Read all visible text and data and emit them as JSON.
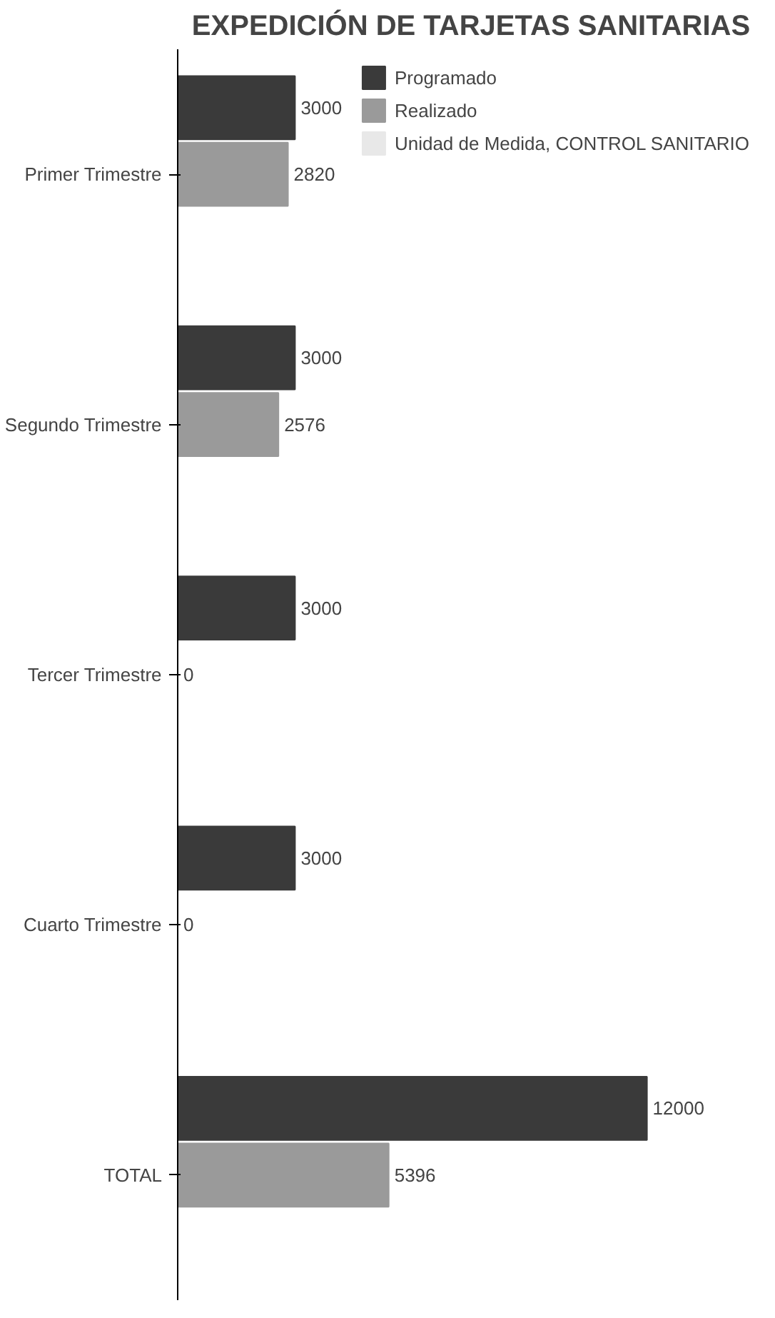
{
  "chart_data": {
    "type": "bar",
    "orientation": "horizontal",
    "title": "EXPEDICIÓN DE TARJETAS SANITARIAS",
    "categories": [
      "Primer Trimestre",
      "Segundo Trimestre",
      "Tercer Trimestre",
      "Cuarto Trimestre",
      "TOTAL"
    ],
    "series": [
      {
        "name": "Programado",
        "color": "#3a3a3a",
        "values": [
          3000,
          3000,
          3000,
          3000,
          12000
        ]
      },
      {
        "name": "Realizado",
        "color": "#9a9a9a",
        "values": [
          2820,
          2576,
          0,
          0,
          5396
        ]
      },
      {
        "name": "Unidad de Medida, CONTROL SANITARIO",
        "color": "#e8e8e8",
        "values": [
          null,
          null,
          null,
          null,
          null
        ]
      }
    ],
    "data_labels": true,
    "legend": "top",
    "tick_labels": "y",
    "grid": false
  }
}
